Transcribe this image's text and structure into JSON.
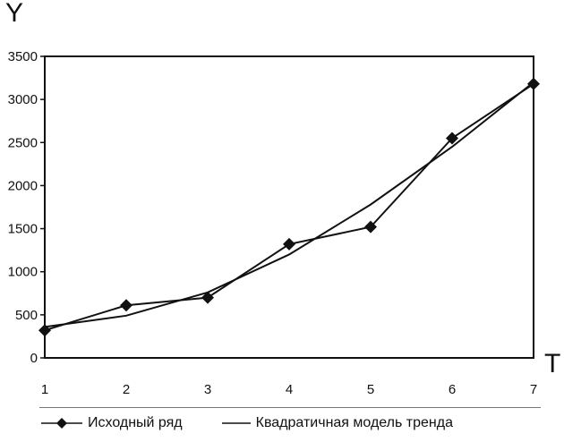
{
  "chart_data": {
    "type": "line",
    "ylabel": "Y",
    "xlabel": "T",
    "x": [
      1,
      2,
      3,
      4,
      5,
      6,
      7
    ],
    "ylim": [
      0,
      3500
    ],
    "yticks": [
      "0",
      "500",
      "1000",
      "1500",
      "2000",
      "2500",
      "3000",
      "3500"
    ],
    "xticks": [
      "1",
      "2",
      "3",
      "4",
      "5",
      "6",
      "7"
    ],
    "grid": false,
    "series": [
      {
        "name": "Исходный ряд",
        "values": [
          320,
          610,
          700,
          1320,
          1520,
          2550,
          3180
        ],
        "marker": "diamond",
        "color": "#111111"
      },
      {
        "name": "Квадратичная модель тренда",
        "values": [
          360,
          490,
          760,
          1200,
          1780,
          2450,
          3200
        ],
        "marker": "none",
        "color": "#111111"
      }
    ],
    "legend_position": "bottom"
  }
}
